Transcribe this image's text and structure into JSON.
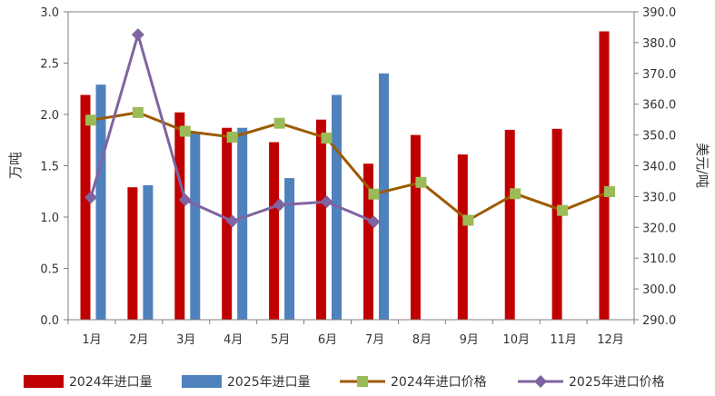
{
  "chart_data": {
    "type": "bar",
    "categories": [
      "1月",
      "2月",
      "3月",
      "4月",
      "5月",
      "6月",
      "7月",
      "8月",
      "9月",
      "10月",
      "11月",
      "12月"
    ],
    "ylabel_left": "万吨",
    "ylabel_right": "美元/吨",
    "ylim_left": [
      0,
      3.0
    ],
    "yticks_left": [
      "0.0",
      "0.5",
      "1.0",
      "1.5",
      "2.0",
      "2.5",
      "3.0"
    ],
    "ylim_right": [
      290,
      390
    ],
    "yticks_right": [
      "290.0",
      "300.0",
      "310.0",
      "320.0",
      "330.0",
      "340.0",
      "350.0",
      "360.0",
      "370.0",
      "380.0",
      "390.0"
    ],
    "grid": false,
    "legend_position": "bottom",
    "bar_series": [
      {
        "name": "2024年进口量",
        "color": "#C00000",
        "values": [
          2.19,
          1.29,
          2.02,
          1.87,
          1.73,
          1.95,
          1.52,
          1.8,
          1.61,
          1.85,
          1.86,
          2.81
        ]
      },
      {
        "name": "2025年进口量",
        "color": "#4F81BD",
        "values": [
          2.29,
          1.31,
          1.82,
          1.87,
          1.38,
          2.19,
          2.4,
          null,
          null,
          null,
          null,
          null
        ]
      }
    ],
    "line_series": [
      {
        "name": "2024年进口价格",
        "color": "#9C5A00",
        "marker_color": "#9BBB59",
        "marker": "square",
        "values": [
          354.8,
          357.3,
          351.2,
          349.3,
          353.8,
          349.0,
          330.8,
          334.6,
          322.3,
          330.9,
          325.5,
          331.6
        ]
      },
      {
        "name": "2025年进口价格",
        "color": "#8064A2",
        "marker_color": "#8064A2",
        "marker": "diamond",
        "values": [
          329.7,
          382.6,
          328.9,
          322.0,
          327.3,
          328.3,
          321.8,
          null,
          null,
          null,
          null,
          null
        ]
      }
    ]
  }
}
